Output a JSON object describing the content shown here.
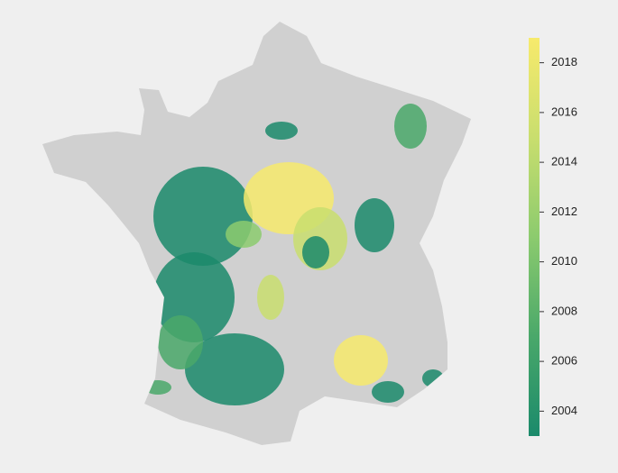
{
  "map": {
    "colorbar": {
      "range": [
        2003,
        2019
      ],
      "ticks": [
        2004,
        2006,
        2008,
        2010,
        2012,
        2014,
        2016,
        2018
      ],
      "colors": [
        "#1b8a6b",
        "#4aa86a",
        "#8ccb6e",
        "#c9de6e",
        "#f7ea6c"
      ]
    }
  }
}
